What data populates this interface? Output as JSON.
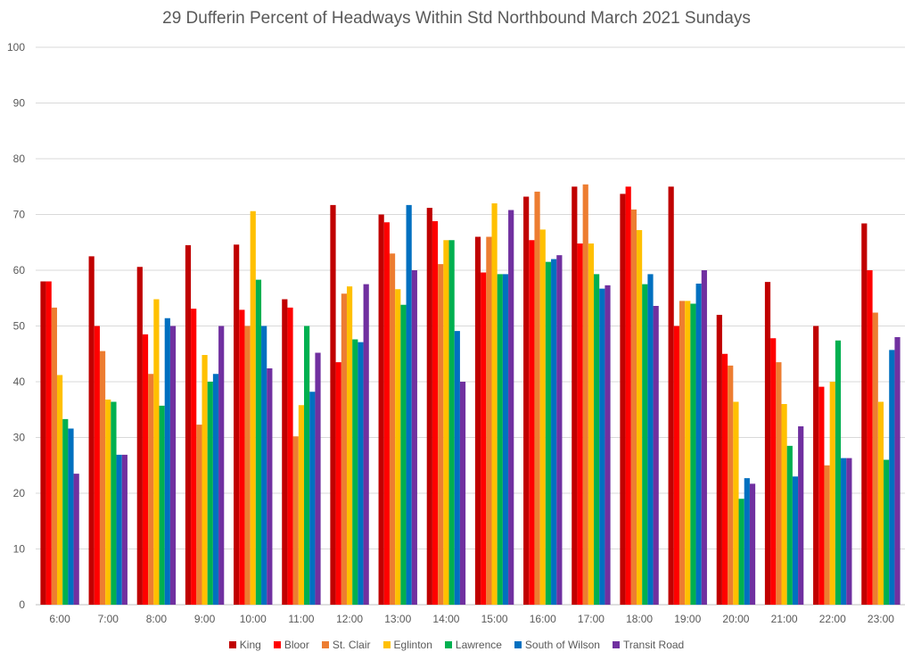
{
  "chart_data": {
    "type": "bar",
    "title": "29 Dufferin  Percent of Headways Within Std Northbound March 2021 Sundays",
    "xlabel": "",
    "ylabel": "",
    "ylim": [
      0,
      100
    ],
    "yticks": [
      0,
      10,
      20,
      30,
      40,
      50,
      60,
      70,
      80,
      90,
      100
    ],
    "grid": true,
    "legend_position": "bottom",
    "categories": [
      "6:00",
      "7:00",
      "8:00",
      "9:00",
      "10:00",
      "11:00",
      "12:00",
      "13:00",
      "14:00",
      "15:00",
      "16:00",
      "17:00",
      "18:00",
      "19:00",
      "20:00",
      "21:00",
      "22:00",
      "23:00"
    ],
    "series": [
      {
        "name": "King",
        "color": "#C00000",
        "values": [
          58,
          62.5,
          60.6,
          64.5,
          64.6,
          54.8,
          71.7,
          70,
          71.2,
          66,
          73.2,
          75,
          73.7,
          75,
          52,
          57.9,
          50,
          68.4
        ]
      },
      {
        "name": "Bloor",
        "color": "#FF0000",
        "values": [
          58,
          50,
          48.5,
          53.1,
          52.9,
          53.3,
          43.5,
          68.6,
          68.8,
          59.6,
          65.4,
          64.8,
          75,
          50,
          45,
          47.8,
          39.1,
          60
        ]
      },
      {
        "name": "St. Clair",
        "color": "#ED7D31",
        "values": [
          53.3,
          45.5,
          41.4,
          32.3,
          50,
          30.2,
          55.8,
          63,
          61.1,
          66,
          74.1,
          75.4,
          70.9,
          54.5,
          42.9,
          43.5,
          25,
          52.4
        ]
      },
      {
        "name": "Eglinton",
        "color": "#FFC000",
        "values": [
          41.2,
          36.8,
          54.8,
          44.8,
          70.6,
          35.8,
          57.1,
          56.6,
          65.4,
          72,
          67.3,
          64.8,
          67.2,
          54.5,
          36.4,
          36,
          40,
          36.4
        ]
      },
      {
        "name": "Lawrence",
        "color": "#00B050",
        "values": [
          33.3,
          36.4,
          35.7,
          40,
          58.3,
          50,
          47.6,
          53.8,
          65.4,
          59.3,
          61.5,
          59.3,
          57.5,
          54,
          19,
          28.5,
          47.4,
          26
        ]
      },
      {
        "name": "South of Wilson",
        "color": "#0070C0",
        "values": [
          31.6,
          26.9,
          51.4,
          41.4,
          50,
          38.2,
          47.1,
          71.7,
          49.1,
          59.3,
          62,
          56.7,
          59.3,
          57.6,
          22.7,
          23,
          26.3,
          45.7
        ]
      },
      {
        "name": "Transit Road",
        "color": "#7030A0",
        "values": [
          23.5,
          26.9,
          50,
          50,
          42.4,
          45.2,
          57.5,
          60,
          40,
          70.8,
          62.7,
          57.3,
          53.6,
          60,
          21.7,
          32,
          26.3,
          48
        ]
      }
    ]
  }
}
